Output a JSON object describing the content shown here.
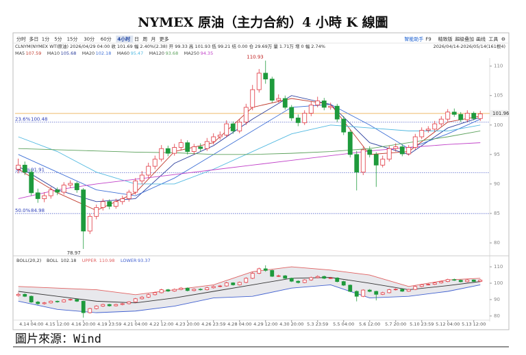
{
  "chart_data": {
    "type": "candlestick",
    "title": "NYMEX 原油（主力合約）4 小時 K 線圖",
    "toolbar": [
      "分时",
      "多日",
      "1分",
      "5分",
      "15分",
      "30分",
      "60分",
      "4小时",
      "日",
      "周",
      "月",
      "更多"
    ],
    "toolbar_active": "4小时",
    "toolbar_right": [
      "智能助手",
      "F9",
      "精致版",
      "超级叠加",
      "画线",
      "工具",
      "⚙"
    ],
    "info": "CLNYM(NYMEX WTI原油)   2026/04/29 04:00   收 101.69   幅 2.40%(2.38)   开 99.33   高 101.93   低 99.21   结 0.00   仓 29.69万   量 1.71万   增 0   幅 2.74%",
    "range_text": "2026/04/14-2026/05/14(161根4)",
    "source": "圖片來源：Wind",
    "categories": [
      null,
      null,
      "4.14 04:00",
      null,
      null,
      null,
      "4.15 12:00",
      null,
      null,
      null,
      "4.16 20:00",
      null,
      null,
      null,
      "4.19 23:59",
      null,
      null,
      null,
      "4.21 04:00",
      null,
      null,
      null,
      "4.22 12:00",
      null,
      null,
      null,
      "4.23 20:00",
      null,
      null,
      null,
      "4.26 23:59",
      null,
      null,
      null,
      "4.28 04:00",
      null,
      null,
      null,
      "4.29 12:00",
      null,
      null,
      null,
      "4.30 20:00",
      null,
      null,
      null,
      "5.3 23:59",
      null,
      null,
      null,
      "5.5 04:00",
      null,
      null,
      null,
      "5.6 12:00",
      null,
      null,
      null,
      "5.7 20:00",
      null,
      null,
      null,
      "5.10 23:59",
      null,
      null,
      null,
      "5.12 04:00",
      null,
      null,
      null,
      "5.13 12:00",
      null
    ],
    "candles": {
      "open": [
        92.5,
        93.2,
        92.0,
        88.5,
        87.5,
        88.0,
        89.0,
        88.6,
        89.8,
        90.1,
        89.0,
        82.0,
        84.5,
        86.0,
        87.0,
        86.2,
        87.0,
        87.5,
        88.6,
        90.5,
        91.5,
        93.0,
        94.2,
        96.0,
        95.2,
        96.2,
        97.0,
        95.5,
        96.3,
        96.0,
        97.2,
        98.0,
        98.3,
        100.2,
        99.0,
        100.5,
        103.0,
        106.0,
        108.8,
        107.8,
        104.2,
        104.5,
        103.0,
        101.2,
        100.4,
        102.0,
        103.4,
        104.1,
        103.0,
        103.2,
        101.0,
        98.8,
        95.0,
        92.0,
        95.8,
        95.0,
        93.2,
        94.2,
        96.0,
        96.3,
        95.1,
        96.2,
        98.0,
        99.1,
        99.3,
        100.2,
        101.0,
        102.2,
        101.8,
        100.9,
        102.0,
        101.1
      ],
      "high": [
        94.3,
        93.8,
        92.5,
        89.2,
        88.6,
        89.5,
        89.4,
        90.3,
        90.6,
        90.4,
        89.3,
        85.0,
        86.5,
        87.5,
        87.4,
        87.5,
        88.0,
        89.0,
        91.0,
        92.2,
        93.6,
        94.8,
        96.6,
        96.5,
        96.8,
        97.6,
        97.4,
        96.8,
        96.9,
        97.8,
        98.6,
        98.9,
        100.8,
        100.6,
        101.0,
        103.6,
        106.8,
        109.5,
        110.93,
        108.2,
        105.2,
        105.0,
        103.4,
        101.8,
        102.5,
        104.0,
        104.8,
        104.6,
        103.8,
        103.6,
        101.5,
        99.2,
        95.6,
        96.3,
        96.4,
        95.4,
        94.8,
        96.5,
        96.9,
        96.7,
        96.6,
        98.5,
        99.6,
        99.8,
        100.7,
        101.5,
        102.7,
        102.8,
        102.2,
        102.5,
        102.3,
        102.4
      ],
      "low": [
        91.8,
        91.5,
        88.0,
        86.8,
        86.9,
        87.5,
        88.1,
        88.2,
        89.3,
        88.5,
        78.97,
        81.5,
        84.0,
        85.5,
        85.7,
        85.8,
        86.5,
        87.0,
        88.2,
        90.0,
        91.0,
        92.5,
        93.8,
        94.7,
        94.8,
        95.7,
        95.0,
        95.0,
        95.5,
        95.6,
        96.7,
        97.5,
        97.9,
        98.5,
        98.6,
        100.0,
        102.5,
        105.5,
        107.0,
        103.8,
        103.8,
        102.6,
        100.7,
        99.8,
        100.0,
        101.5,
        103.0,
        102.5,
        102.6,
        100.5,
        98.3,
        94.5,
        88.9,
        91.5,
        94.5,
        89.5,
        92.8,
        93.8,
        95.5,
        94.7,
        94.8,
        95.8,
        97.6,
        98.7,
        98.9,
        99.8,
        100.6,
        101.4,
        100.5,
        100.5,
        100.8,
        100.7
      ],
      "close": [
        93.2,
        92.0,
        88.5,
        87.5,
        88.0,
        89.0,
        88.6,
        89.8,
        90.1,
        89.0,
        82.0,
        84.5,
        86.0,
        87.0,
        86.2,
        87.0,
        87.5,
        88.6,
        90.5,
        91.5,
        93.0,
        94.2,
        96.0,
        95.2,
        96.2,
        97.0,
        95.5,
        96.3,
        96.0,
        97.2,
        98.0,
        98.3,
        100.2,
        99.0,
        100.5,
        103.0,
        106.0,
        108.8,
        107.8,
        104.2,
        104.5,
        103.0,
        101.2,
        100.4,
        102.0,
        103.4,
        104.1,
        103.0,
        103.2,
        101.0,
        98.8,
        95.0,
        92.0,
        95.8,
        95.0,
        93.2,
        94.2,
        96.0,
        96.3,
        95.1,
        96.2,
        98.0,
        99.1,
        99.3,
        100.2,
        101.0,
        102.2,
        101.8,
        100.9,
        102.0,
        101.1,
        101.9
      ]
    },
    "up_color": "#e0333c",
    "down_color": "#1e9a3c",
    "ylim": [
      78.5,
      111
    ],
    "yticks": [
      80,
      85,
      90,
      95,
      100,
      105,
      110
    ],
    "last_price": 101.96,
    "last_color": "#e8a33a",
    "fib": [
      {
        "name": "23.6%",
        "value": 100.48
      },
      {
        "name": "38.2%",
        "value": 91.91
      },
      {
        "name": "50.0%",
        "value": 84.98
      }
    ],
    "ma": [
      {
        "name": "MA5",
        "value": 107.59,
        "color": "#c0392b",
        "x": [
          0,
          6,
          12,
          18,
          24,
          30,
          36,
          42,
          48,
          54,
          60,
          66,
          71
        ],
        "values": [
          92.5,
          88.5,
          85.5,
          88.5,
          95.5,
          97,
          103,
          104.5,
          103.5,
          95,
          95.5,
          100.5,
          101.5
        ]
      },
      {
        "name": "MA10",
        "value": 105.68,
        "color": "#2a3d9c",
        "x": [
          0,
          6,
          12,
          18,
          24,
          30,
          36,
          42,
          48,
          54,
          60,
          66,
          71
        ],
        "values": [
          93,
          89,
          87,
          87.5,
          93.5,
          96.5,
          101,
          105,
          103.5,
          97,
          95,
          99.5,
          101.3
        ]
      },
      {
        "name": "MA20",
        "value": 102.18,
        "color": "#3d6fd6",
        "x": [
          0,
          6,
          12,
          18,
          24,
          30,
          36,
          42,
          48,
          54,
          60,
          66,
          71
        ],
        "values": [
          95,
          92,
          89,
          88,
          91,
          95,
          99,
          103,
          103.5,
          100,
          96,
          98.5,
          101
        ]
      },
      {
        "name": "MA60",
        "value": 95.47,
        "color": "#4fb8e0",
        "x": [
          0,
          6,
          12,
          18,
          24,
          30,
          36,
          42,
          48,
          54,
          60,
          66,
          71
        ],
        "values": [
          98,
          95.5,
          92,
          90,
          90,
          92.5,
          95.5,
          98.5,
          100,
          99.5,
          99,
          99,
          100
        ]
      },
      {
        "name": "MA120",
        "value": 93.68,
        "color": "#5aa05a",
        "x": [
          0,
          6,
          12,
          18,
          24,
          30,
          36,
          42,
          48,
          54,
          60,
          66,
          71
        ],
        "values": [
          96,
          95.8,
          95.6,
          95.4,
          95.3,
          95,
          95,
          95.2,
          95.5,
          96,
          97,
          98,
          99
        ]
      },
      {
        "name": "MA250",
        "value": 94.35,
        "color": "#c040c8",
        "x": [
          0,
          6,
          12,
          18,
          24,
          30,
          36,
          42,
          48,
          54,
          60,
          66,
          71
        ],
        "values": [
          87.5,
          89,
          90,
          90.8,
          91.6,
          92.4,
          93.2,
          94,
          94.8,
          95.6,
          96.2,
          96.7,
          97
        ]
      }
    ],
    "boll": {
      "name": "BOLL(20,2)",
      "ylim": [
        78.3,
        114.2
      ],
      "yticks": [
        80,
        90,
        100,
        110
      ],
      "lines": [
        {
          "name": "BOLL",
          "value": 102.18,
          "color": "#333333",
          "x": [
            0,
            6,
            12,
            18,
            24,
            30,
            36,
            42,
            48,
            54,
            60,
            66,
            71
          ],
          "values": [
            95,
            92,
            89,
            88,
            91,
            95,
            99,
            103,
            103.5,
            100,
            96,
            98.5,
            101
          ]
        },
        {
          "name": "UPPER",
          "value": 110.98,
          "color": "#e06060",
          "x": [
            0,
            6,
            12,
            18,
            24,
            30,
            36,
            42,
            48,
            54,
            60,
            66,
            71
          ],
          "values": [
            98,
            97,
            96,
            93,
            96,
            99,
            107,
            110,
            108,
            105,
            98,
            102,
            103
          ]
        },
        {
          "name": "LOWER",
          "value": 93.37,
          "color": "#4060d0",
          "x": [
            0,
            6,
            12,
            18,
            24,
            30,
            36,
            42,
            48,
            54,
            60,
            66,
            71
          ],
          "values": [
            89,
            84,
            82,
            83,
            86,
            91,
            92,
            97,
            99,
            91,
            92,
            95,
            99
          ]
        }
      ]
    }
  }
}
